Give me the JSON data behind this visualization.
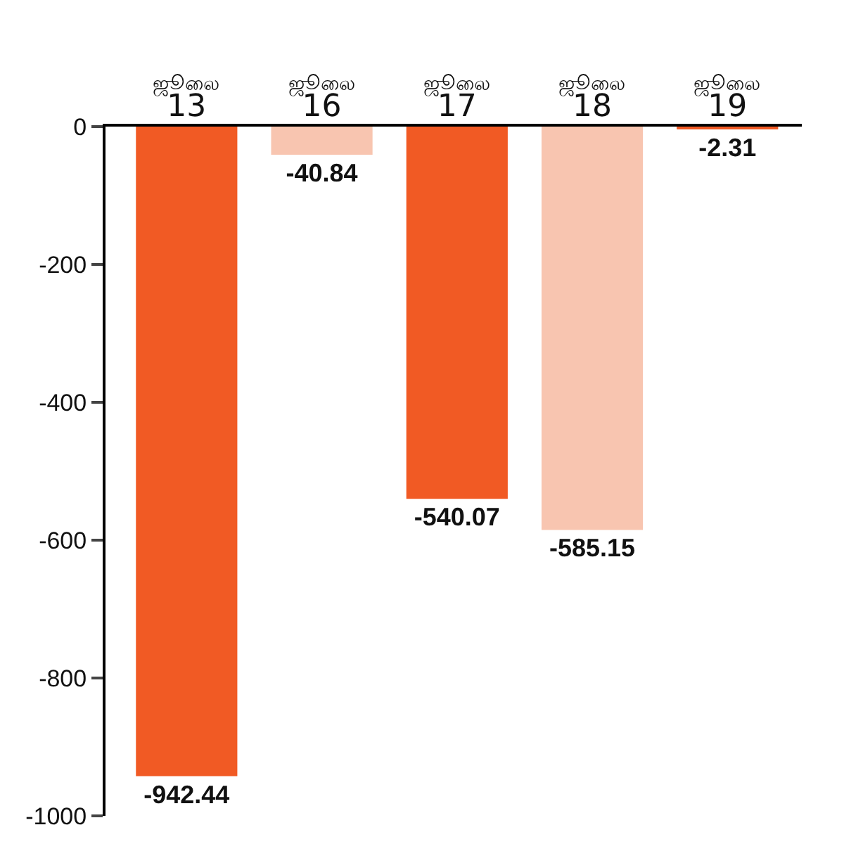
{
  "chart_data": {
    "type": "bar",
    "categories": [
      "ஜூலை 13",
      "ஜூலை 16",
      "ஜூலை 17",
      "ஜூலை 18",
      "ஜூலை 19"
    ],
    "values": [
      -942.44,
      -40.84,
      -540.07,
      -585.15,
      -2.31
    ],
    "colors": [
      "#f15a24",
      "#f8c5b0",
      "#f15a24",
      "#f8c5b0",
      "#f15a24"
    ],
    "ylim": [
      -1000,
      0
    ],
    "yticks": [
      0,
      -200,
      -400,
      -600,
      -800,
      -1000
    ],
    "data_labels": true,
    "legend": false
  }
}
